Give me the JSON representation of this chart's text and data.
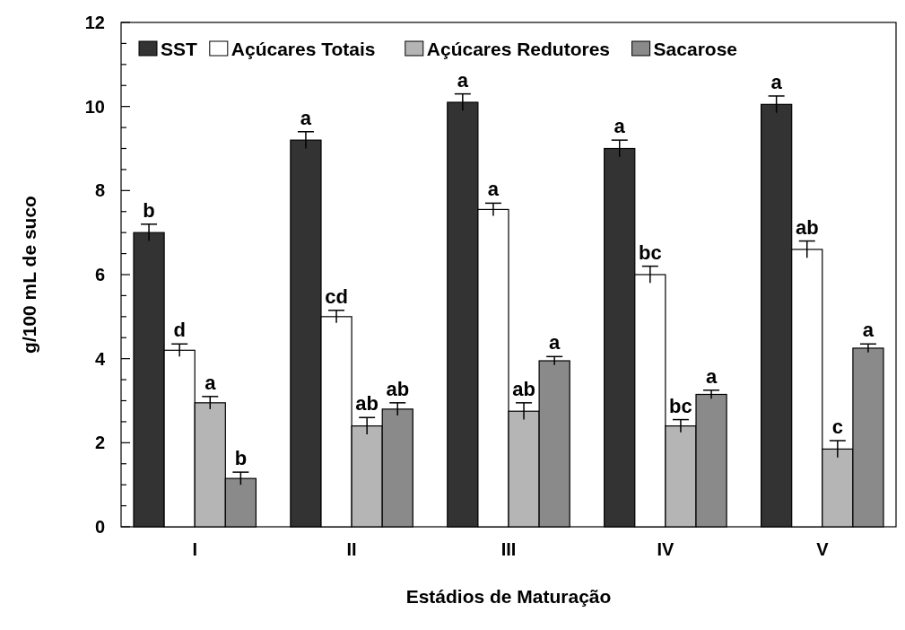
{
  "chart_data": {
    "type": "bar",
    "xlabel": "Estádios de Maturação",
    "ylabel": "g/100 mL de suco",
    "categories": [
      "I",
      "II",
      "III",
      "IV",
      "V"
    ],
    "series": [
      {
        "name": "SST",
        "color": "#333333",
        "values": [
          7.0,
          9.2,
          10.1,
          9.0,
          10.05
        ],
        "errors": [
          0.2,
          0.2,
          0.2,
          0.2,
          0.2
        ]
      },
      {
        "name": "Açúcares Totais",
        "color": "#ffffff",
        "values": [
          4.2,
          5.0,
          7.55,
          6.0,
          6.6
        ],
        "errors": [
          0.15,
          0.15,
          0.15,
          0.2,
          0.2
        ]
      },
      {
        "name": "Açúcares Redutores",
        "color": "#b5b5b5",
        "values": [
          2.95,
          2.4,
          2.75,
          2.4,
          1.85
        ],
        "errors": [
          0.15,
          0.2,
          0.2,
          0.15,
          0.2
        ]
      },
      {
        "name": "Sacarose",
        "color": "#8a8a8a",
        "values": [
          1.15,
          2.8,
          3.95,
          3.15,
          4.25
        ],
        "errors": [
          0.15,
          0.15,
          0.1,
          0.1,
          0.1
        ]
      }
    ],
    "annotations": [
      "b",
      "d",
      "a",
      "b",
      "a",
      "cd",
      "ab",
      "ab",
      "a",
      "a",
      "ab",
      "a",
      "a",
      "bc",
      "bc",
      "a",
      "a",
      "ab",
      "c",
      "a"
    ],
    "ylim": [
      0,
      12
    ],
    "yticks": [
      0,
      {
        "value": 0.5,
        "label": null
      },
      2,
      {
        "value": 1,
        "label": null
      },
      {
        "value": 1.5,
        "label": null
      },
      {
        "value": 2.5,
        "label": null
      },
      {
        "value": 3,
        "label": null
      },
      {
        "value": 3.5,
        "label": null
      },
      4,
      {
        "value": 4.5,
        "label": null
      },
      {
        "value": 5,
        "label": null
      },
      {
        "value": 5.5,
        "label": null
      },
      6,
      {
        "value": 6.5,
        "label": null
      },
      {
        "value": 7,
        "label": null
      },
      {
        "value": 7.5,
        "label": null
      },
      8,
      {
        "value": 8.5,
        "label": null
      },
      {
        "value": 9,
        "label": null
      },
      {
        "value": 9.5,
        "label": null
      },
      10,
      {
        "value": 10.5,
        "label": null
      },
      {
        "value": 11,
        "label": null
      },
      {
        "value": 11.5,
        "label": null
      },
      12
    ],
    "legend": "top",
    "grid": false
  }
}
